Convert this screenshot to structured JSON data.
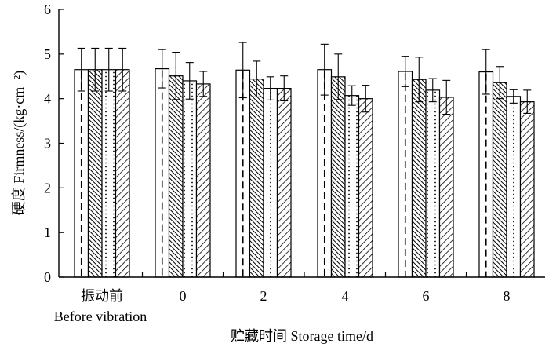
{
  "chart_data": {
    "type": "bar",
    "categories": [
      "振动前|Before vibration",
      "0",
      "2",
      "4",
      "6",
      "8"
    ],
    "category_labels": [
      {
        "cn": "振动前",
        "en": "Before vibration"
      },
      {
        "cn": "0",
        "en": ""
      },
      {
        "cn": "2",
        "en": ""
      },
      {
        "cn": "4",
        "en": ""
      },
      {
        "cn": "6",
        "en": ""
      },
      {
        "cn": "8",
        "en": ""
      }
    ],
    "series": [
      {
        "pattern": "dashed-line",
        "values": [
          4.65,
          4.67,
          4.64,
          4.65,
          4.61,
          4.6
        ],
        "errors": [
          0.48,
          0.43,
          0.62,
          0.57,
          0.34,
          0.5
        ]
      },
      {
        "pattern": "dense-diagonal",
        "values": [
          4.65,
          4.51,
          4.44,
          4.49,
          4.43,
          4.36
        ],
        "errors": [
          0.48,
          0.53,
          0.4,
          0.51,
          0.5,
          0.36
        ]
      },
      {
        "pattern": "dotted",
        "values": [
          4.65,
          4.4,
          4.23,
          4.07,
          4.19,
          4.05
        ],
        "errors": [
          0.48,
          0.41,
          0.26,
          0.22,
          0.26,
          0.15
        ]
      },
      {
        "pattern": "sparse-diagonal",
        "values": [
          4.65,
          4.33,
          4.23,
          4.0,
          4.03,
          3.93
        ],
        "errors": [
          0.48,
          0.28,
          0.28,
          0.3,
          0.38,
          0.26
        ]
      }
    ],
    "ylim": [
      0,
      6
    ],
    "yticks": [
      "0",
      "1",
      "2",
      "3",
      "4",
      "5",
      "6"
    ],
    "ylabel": "硬度  Firmness/(kg·cm⁻²)",
    "xlabel": "贮藏时间  Storage time/d",
    "grid": false,
    "legend": "none"
  }
}
